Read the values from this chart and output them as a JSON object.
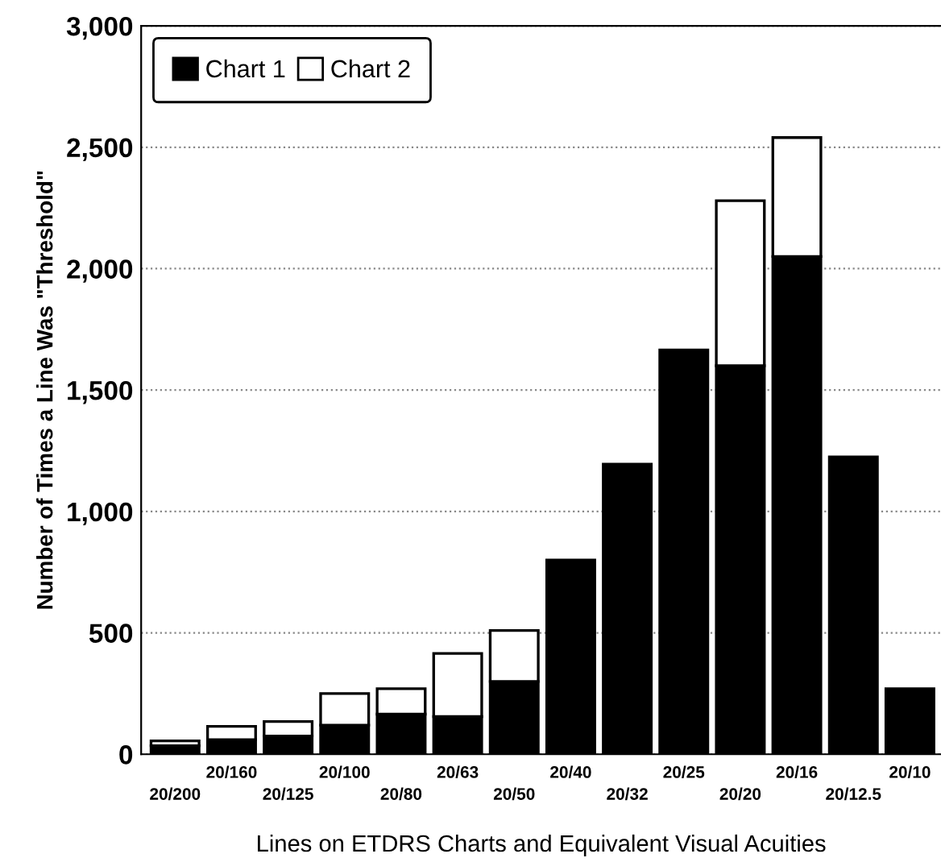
{
  "chart_data": {
    "type": "bar",
    "stacked": true,
    "xlabel": "Lines on ETDRS Charts and Equivalent Visual Acuities",
    "ylabel": "Number of Times a Line Was \"Threshold\"",
    "categories": [
      "20/200",
      "20/160",
      "20/125",
      "20/100",
      "20/80",
      "20/63",
      "20/50",
      "20/40",
      "20/32",
      "20/25",
      "20/20",
      "20/16",
      "20/12.5",
      "20/10"
    ],
    "series": [
      {
        "name": "Chart 1",
        "color": "#000000",
        "values": [
          35,
          60,
          75,
          120,
          165,
          155,
          300,
          800,
          1195,
          1665,
          1600,
          2050,
          1225,
          270
        ]
      },
      {
        "name": "Chart 2",
        "color": "#ffffff",
        "values": [
          20,
          55,
          60,
          130,
          105,
          260,
          210,
          null,
          null,
          null,
          680,
          490,
          null,
          null
        ]
      }
    ],
    "ylim": [
      0,
      3000
    ],
    "yticks": [
      {
        "value": 0,
        "label": "0"
      },
      {
        "value": 500,
        "label": "500"
      },
      {
        "value": 1000,
        "label": "1,000"
      },
      {
        "value": 1500,
        "label": "1,500"
      },
      {
        "value": 2000,
        "label": "2,000"
      },
      {
        "value": 2500,
        "label": "2,500"
      },
      {
        "value": 3000,
        "label": "3,000"
      }
    ],
    "grid": "y",
    "legend": "top left"
  }
}
